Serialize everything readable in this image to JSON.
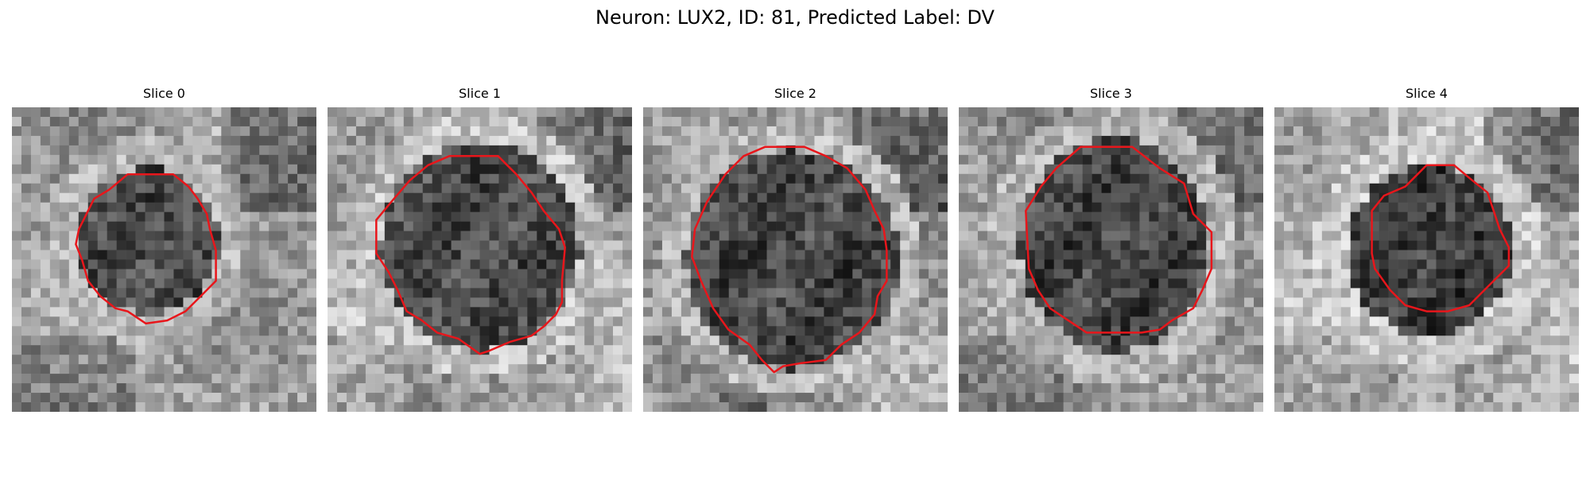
{
  "figure": {
    "title": "Neuron: LUX2, ID: 81, Predicted Label: DV"
  },
  "panels": [
    {
      "title": "Slice 0"
    },
    {
      "title": "Slice 1"
    },
    {
      "title": "Slice 2"
    },
    {
      "title": "Slice 3"
    },
    {
      "title": "Slice 4"
    }
  ],
  "colors": {
    "contour": "#e8161b",
    "background": "#ffffff"
  }
}
